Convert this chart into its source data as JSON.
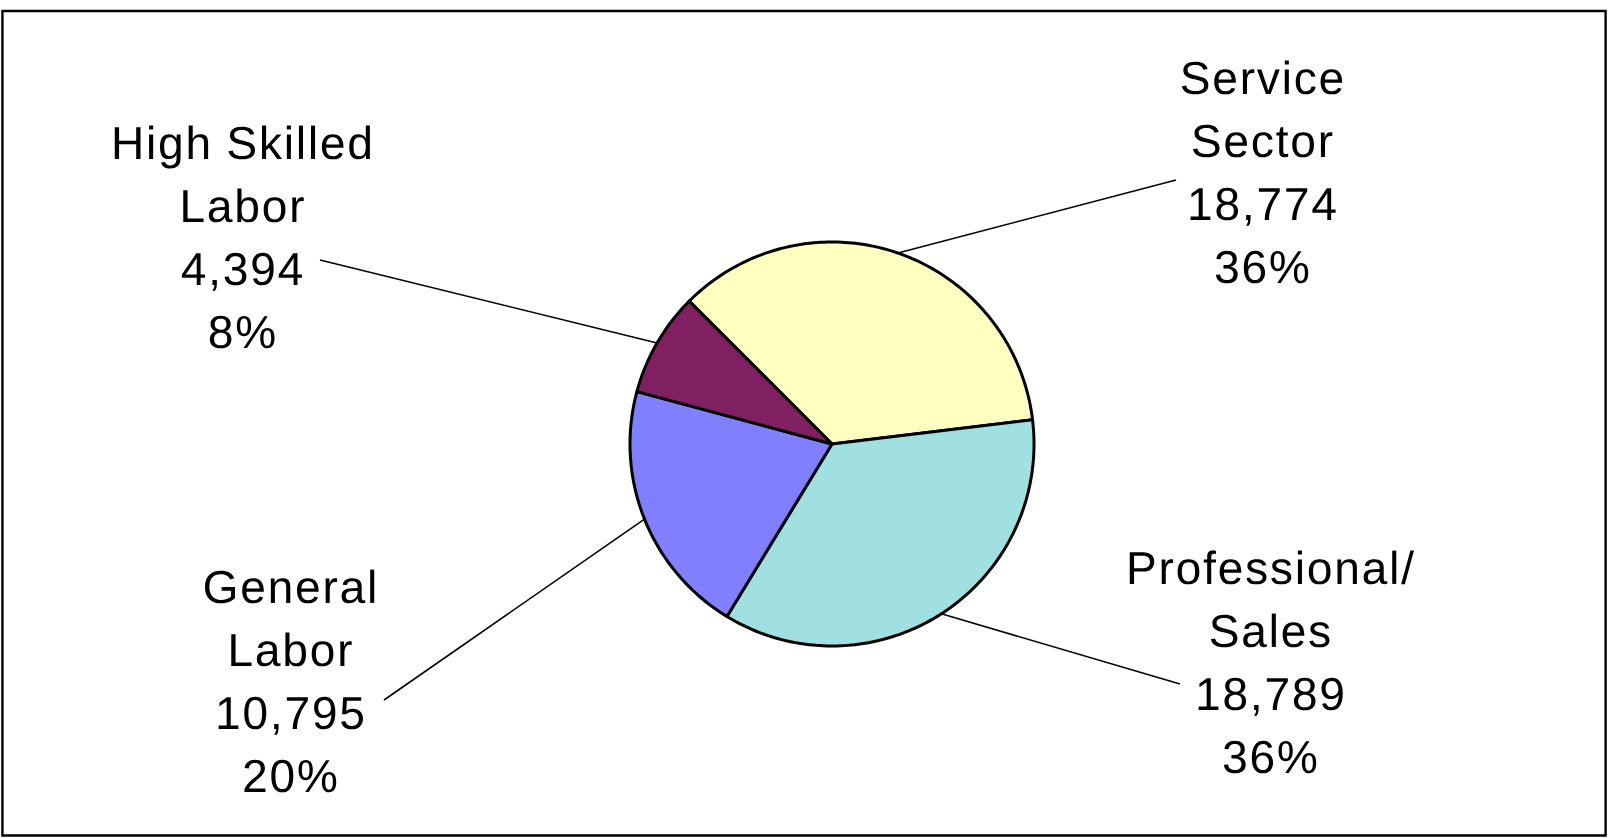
{
  "chart_data": {
    "type": "pie",
    "categories": [
      "Service Sector",
      "Professional/ Sales",
      "General Labor",
      "High Skilled Labor"
    ],
    "values": [
      18774,
      18789,
      10795,
      4394
    ],
    "colors": [
      "#ffffc0",
      "#a0e0e0",
      "#8080ff",
      "#802060"
    ],
    "value_labels": [
      "18,774 36%",
      "18,789 36%",
      "10,795 20%",
      "4,394 8%"
    ]
  }
}
